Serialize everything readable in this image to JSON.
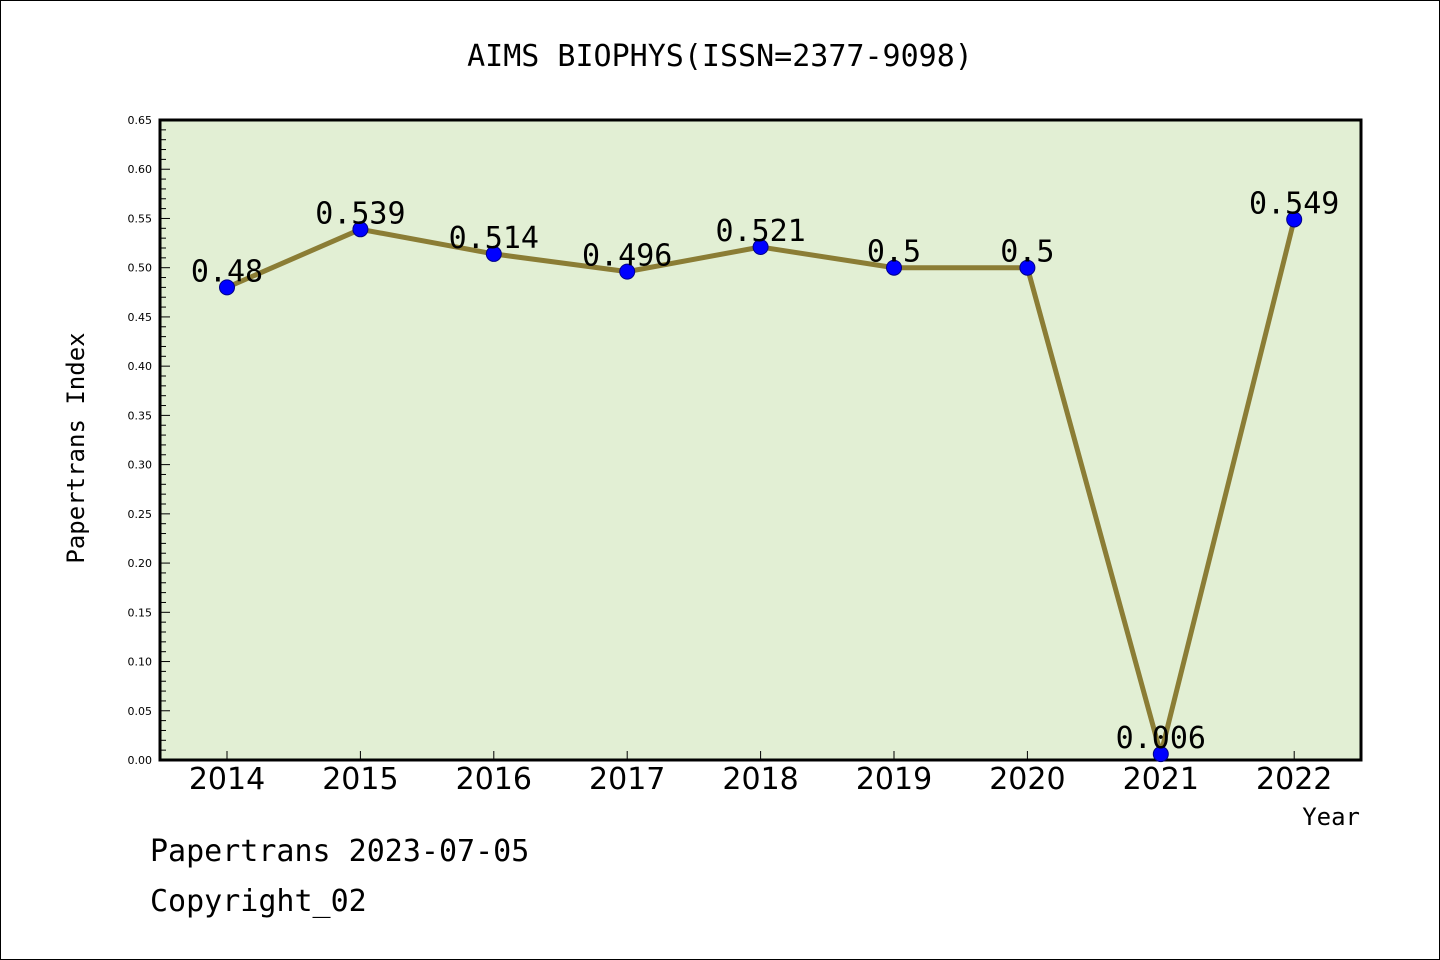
{
  "chart_data": {
    "type": "line",
    "title": "AIMS BIOPHYS(ISSN=2377-9098)",
    "xlabel": "Year",
    "ylabel": "Papertrans Index",
    "categories": [
      "2014",
      "2015",
      "2016",
      "2017",
      "2018",
      "2019",
      "2020",
      "2021",
      "2022"
    ],
    "values": [
      0.48,
      0.539,
      0.514,
      0.496,
      0.521,
      0.5,
      0.5,
      0.006,
      0.549
    ],
    "data_labels": [
      "0.48",
      "0.539",
      "0.514",
      "0.496",
      "0.521",
      "0.5",
      "0.5",
      "0.006",
      "0.549"
    ],
    "ylim": [
      0,
      0.65
    ],
    "yticks": [
      "0.00",
      "0.05",
      "0.10",
      "0.15",
      "0.20",
      "0.25",
      "0.30",
      "0.35",
      "0.40",
      "0.45",
      "0.50",
      "0.55",
      "0.60",
      "0.65"
    ],
    "grid": false,
    "colors": {
      "plot_background": "#e2efd4",
      "line": "#8b7d35",
      "marker": "#0000ff"
    }
  },
  "footer": {
    "line1": "Papertrans 2023-07-05",
    "line2": "Copyright_02"
  }
}
